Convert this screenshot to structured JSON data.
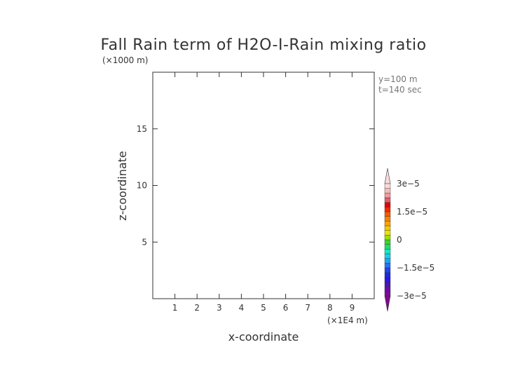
{
  "chart_data": {
    "type": "heatmap",
    "title": "Fall Rain term of H2O-I-Rain mixing ratio",
    "xlabel": "x-coordinate",
    "ylabel": "z-coordinate",
    "x_scale_label": "(×1E4 m)",
    "y_scale_label": "(×1000 m)",
    "annotations": [
      "y=100 m",
      "t=140 sec"
    ],
    "xlim": [
      0,
      10
    ],
    "ylim": [
      0,
      20
    ],
    "x_ticks": [
      1,
      2,
      3,
      4,
      5,
      6,
      7,
      8,
      9
    ],
    "y_ticks": [
      5,
      10,
      15
    ],
    "field_values": [],
    "colorbar": {
      "range": [
        -3e-05,
        3e-05
      ],
      "tick_labels": [
        "3e−5",
        "1.5e−5",
        "0",
        "−1.5e−5",
        "−3e−5"
      ],
      "tick_values": [
        3e-05,
        1.5e-05,
        0,
        -1.5e-05,
        -3e-05
      ],
      "extend": "both",
      "colors": [
        "#7f0a8f",
        "#6a0bb0",
        "#4a12c8",
        "#2b1ad8",
        "#1a2ae8",
        "#1f45f2",
        "#2870f5",
        "#20a4f4",
        "#13d1f0",
        "#10ecc0",
        "#18e070",
        "#3bd42c",
        "#9ee000",
        "#e6e600",
        "#f7c800",
        "#f9a400",
        "#fb8000",
        "#f85a00",
        "#f02b00",
        "#e80000",
        "#e06070",
        "#f39a9a",
        "#f5bcbc",
        "#f9dada"
      ]
    }
  }
}
